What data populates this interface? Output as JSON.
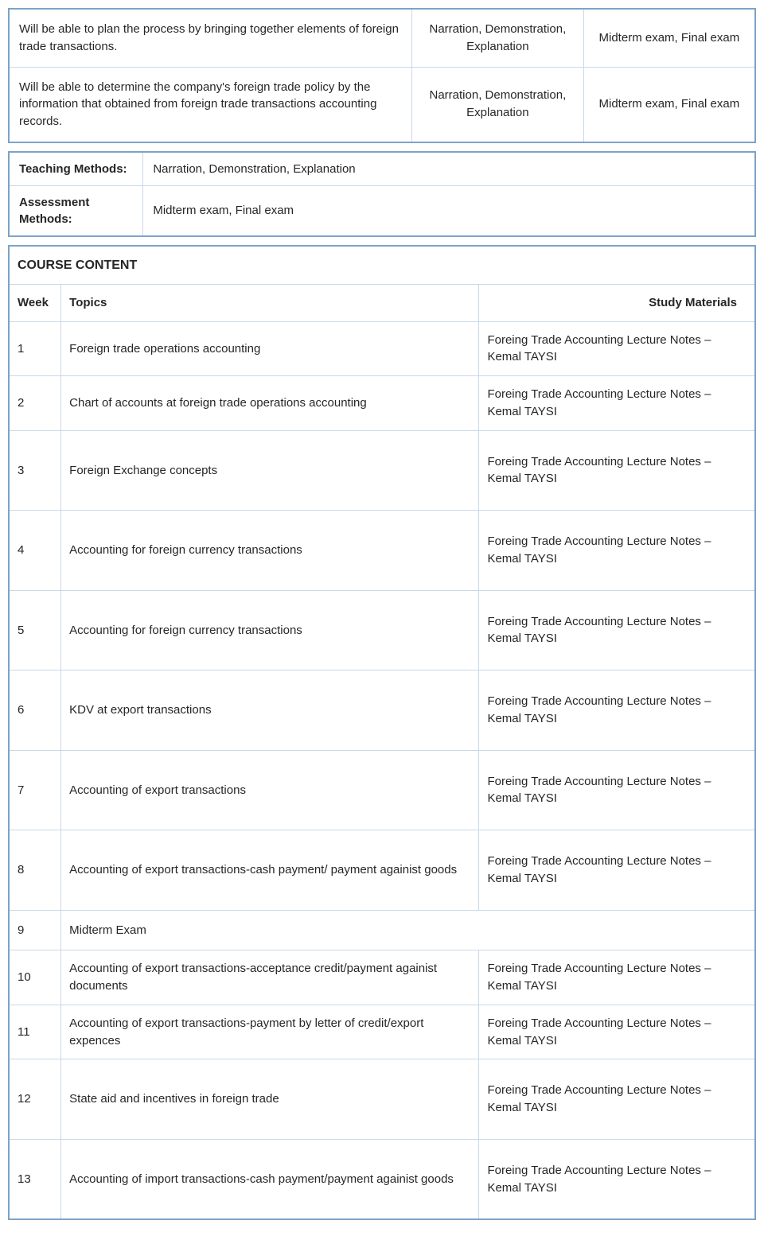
{
  "outcomes": [
    {
      "desc": "Will be able to plan the process by bringing together elements of foreign trade transactions.",
      "method": "Narration, Demonstration, Explanation",
      "assess": "Midterm exam, Final exam"
    },
    {
      "desc": "Will be able to determine the company's foreign trade policy by the information that obtained from foreign trade transactions accounting records.",
      "method": "Narration, Demonstration, Explanation",
      "assess": "Midterm exam, Final exam"
    }
  ],
  "methods": {
    "teaching_label": "Teaching Methods:",
    "teaching_value": "Narration, Demonstration, Explanation",
    "assessment_label": "Assessment Methods:",
    "assessment_value": "Midterm exam, Final exam"
  },
  "content": {
    "title": "COURSE CONTENT",
    "headers": {
      "week": "Week",
      "topics": "Topics",
      "study": "Study Materials"
    },
    "material": "Foreing Trade Accounting Lecture Notes – Kemal TAYSI",
    "rows": [
      {
        "week": "1",
        "topic": "Foreign trade operations accounting",
        "has_material": true
      },
      {
        "week": "2",
        "topic": "Chart of accounts at foreign trade operations accounting",
        "has_material": true
      },
      {
        "week": "3",
        "topic": "Foreign Exchange concepts",
        "has_material": true
      },
      {
        "week": "4",
        "topic": "Accounting for foreign currency transactions",
        "has_material": true
      },
      {
        "week": "5",
        "topic": "Accounting for foreign currency transactions",
        "has_material": true
      },
      {
        "week": "6",
        "topic": "KDV at export transactions",
        "has_material": true
      },
      {
        "week": "7",
        "topic": "Accounting of export transactions",
        "has_material": true
      },
      {
        "week": "8",
        "topic": "Accounting of export transactions-cash payment/ payment againist goods",
        "has_material": true
      },
      {
        "week": "9",
        "topic": "Midterm Exam",
        "has_material": false
      },
      {
        "week": "10",
        "topic": "Accounting of export transactions-acceptance credit/payment againist documents",
        "has_material": true
      },
      {
        "week": "11",
        "topic": "Accounting of export transactions-payment by letter of credit/export expences",
        "has_material": true
      },
      {
        "week": "12",
        "topic": "State aid and incentives in foreign trade",
        "has_material": true
      },
      {
        "week": "13",
        "topic": "Accounting of import transactions-cash payment/payment againist goods",
        "has_material": true
      }
    ]
  }
}
